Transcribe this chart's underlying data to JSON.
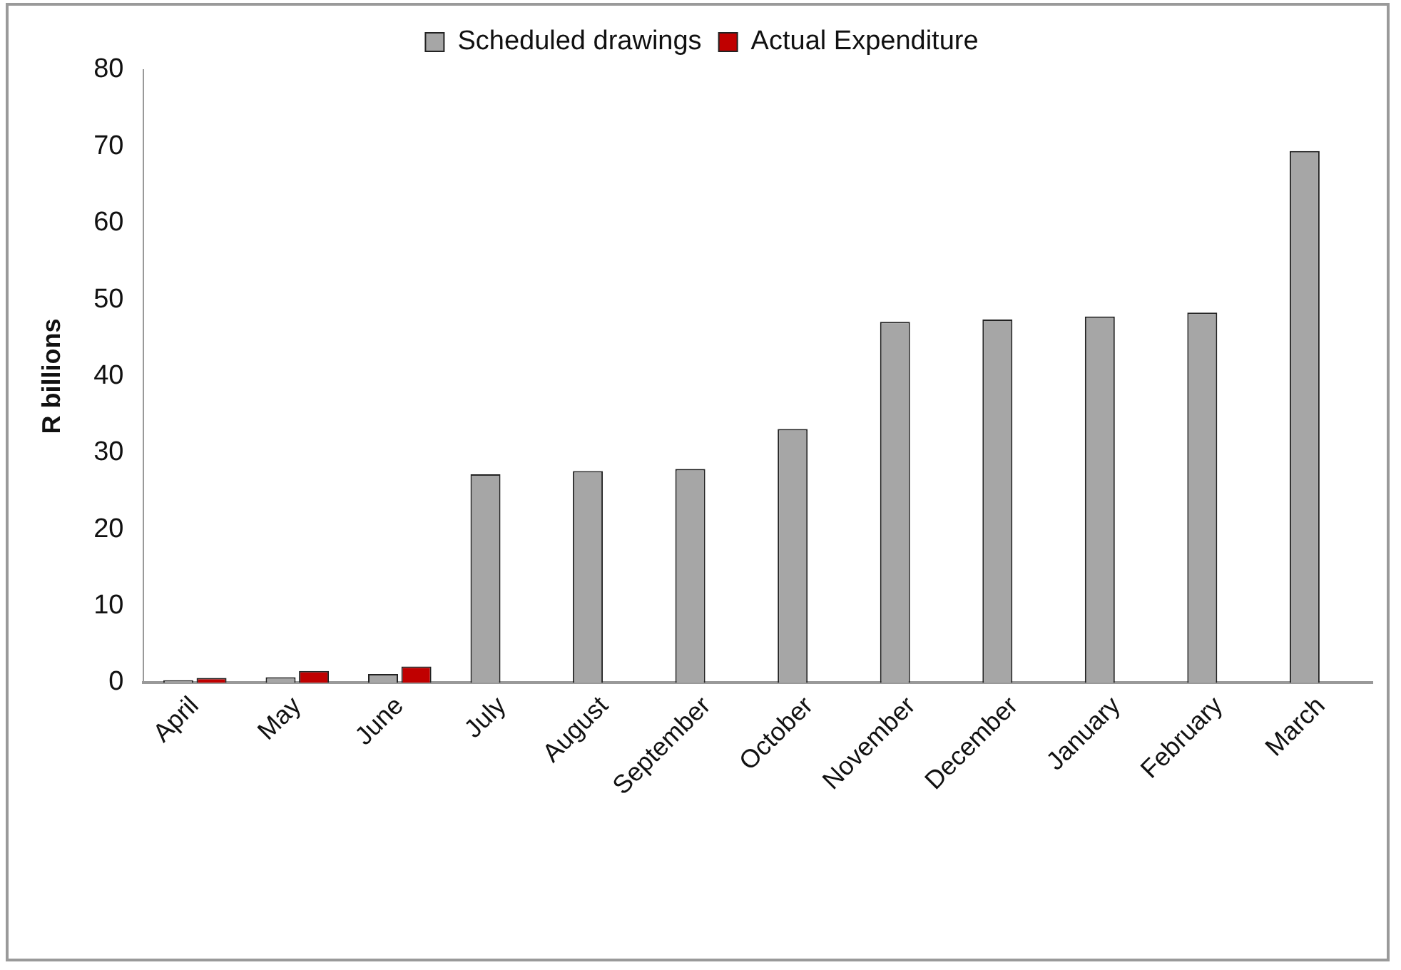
{
  "chart_data": {
    "type": "bar",
    "ylabel": "R billions",
    "categories": [
      "April",
      "May",
      "June",
      "July",
      "August",
      "September",
      "October",
      "November",
      "December",
      "January",
      "February",
      "March"
    ],
    "series": [
      {
        "name": "Scheduled drawings",
        "color": "#a6a6a6",
        "values": [
          0.3,
          0.7,
          1.1,
          27.2,
          27.6,
          27.9,
          33.1,
          47.1,
          47.4,
          47.8,
          48.3,
          69.4
        ]
      },
      {
        "name": "Actual Expenditure",
        "color": "#c00000",
        "values": [
          0.6,
          1.5,
          2.1,
          null,
          null,
          null,
          null,
          null,
          null,
          null,
          null,
          null
        ]
      }
    ],
    "ylim": [
      0,
      80
    ],
    "yticks": [
      0,
      10,
      20,
      30,
      40,
      50,
      60,
      70,
      80
    ],
    "grid": false,
    "legend": "top"
  }
}
